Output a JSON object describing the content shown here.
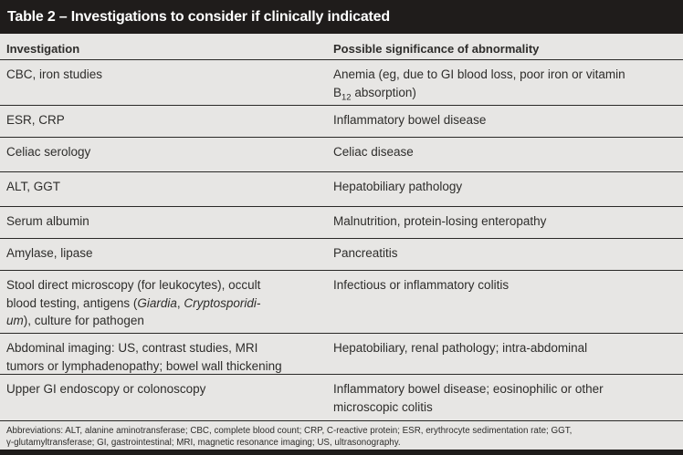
{
  "table": {
    "title": "Table 2 – Investigations to consider if clinically indicated",
    "columns": [
      "Investigation",
      "Possible significance of abnormality"
    ],
    "rows": [
      {
        "investigation": "CBC, iron studies",
        "sig_l1": "Anemia (eg, due to GI blood loss, poor iron or vitamin",
        "sig_l2_pre": "B",
        "sig_l2_sub": "12",
        "sig_l2_post": " absorption)"
      },
      {
        "investigation": "ESR, CRP",
        "significance": "Inflammatory bowel disease"
      },
      {
        "investigation": "Celiac serology",
        "significance": "Celiac disease"
      },
      {
        "investigation": "ALT, GGT",
        "significance": "Hepatobiliary pathology"
      },
      {
        "investigation": "Serum albumin",
        "significance": "Malnutrition, protein-losing enteropathy"
      },
      {
        "investigation": "Amylase, lipase",
        "significance": "Pancreatitis"
      },
      {
        "inv_l1": "Stool direct microscopy (for leukocytes), occult",
        "inv_l2_pre": "blood testing, antigens (",
        "inv_l2_it1": "Giardia",
        "inv_l2_mid": ", ",
        "inv_l2_it2": "Cryptosporidi-",
        "inv_l3_it": "um",
        "inv_l3_post": "), culture for pathogen",
        "significance": "Infectious or inflammatory colitis"
      },
      {
        "inv_l1": "Abdominal imaging: US, contrast studies, MRI",
        "inv_l2": "tumors or lymphadenopathy; bowel wall thickening",
        "significance": "Hepatobiliary, renal pathology; intra-abdominal"
      },
      {
        "investigation": "Upper GI endoscopy or colonoscopy",
        "sig_l1": "Inflammatory bowel disease; eosinophilic or other",
        "sig_l2": "microscopic colitis"
      }
    ],
    "footnote_l1": "Abbreviations: ALT, alanine aminotransferase; CBC, complete blood count; CRP, C-reactive protein; ESR, erythrocyte sedimentation rate; GGT,",
    "footnote_l2": "γ-glutamyltransferase; GI, gastrointestinal; MRI, magnetic resonance imaging; US, ultrasonography."
  },
  "colors": {
    "title_bar": "#1f1c1b",
    "background": "#e7e6e4",
    "rule_line": "#2a2927",
    "text": "#2e2d2b",
    "title_text": "#ffffff"
  }
}
